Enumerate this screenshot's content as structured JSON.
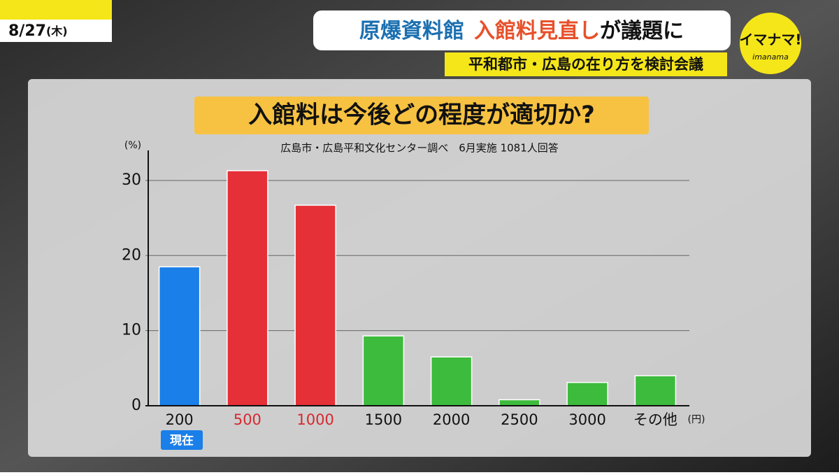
{
  "header": {
    "date": "8/27",
    "weekday": "(木)",
    "headline_1": "原爆資料館",
    "headline_2": "入館料見直し",
    "headline_3": "が議題に",
    "subheadline": "平和都市・広島の在り方を検討会議",
    "logo": "イマナマ!",
    "logo_sub": "imanama"
  },
  "chart_data": {
    "type": "bar",
    "title": "入館料は今後どの程度が適切か?",
    "subtitle": "広島市・広島平和文化センター調べ　6月実施 1081人回答",
    "y_unit": "(%)",
    "x_unit": "(円)",
    "current_label": "現在",
    "categories": [
      "200",
      "500",
      "1000",
      "1500",
      "2000",
      "2500",
      "3000",
      "その他"
    ],
    "values": [
      18.5,
      31.3,
      26.7,
      9.3,
      6.5,
      0.8,
      3.1,
      4.0
    ],
    "colors": [
      "#1a7fe8",
      "#e63038",
      "#e63038",
      "#3dbb3d",
      "#3dbb3d",
      "#3dbb3d",
      "#3dbb3d",
      "#3dbb3d"
    ],
    "label_colors": [
      "#111111",
      "#d42a30",
      "#d42a30",
      "#111111",
      "#111111",
      "#111111",
      "#111111",
      "#111111"
    ],
    "ylim": [
      0,
      34
    ],
    "yticks": [
      0,
      10,
      20,
      30
    ],
    "grid": true
  }
}
